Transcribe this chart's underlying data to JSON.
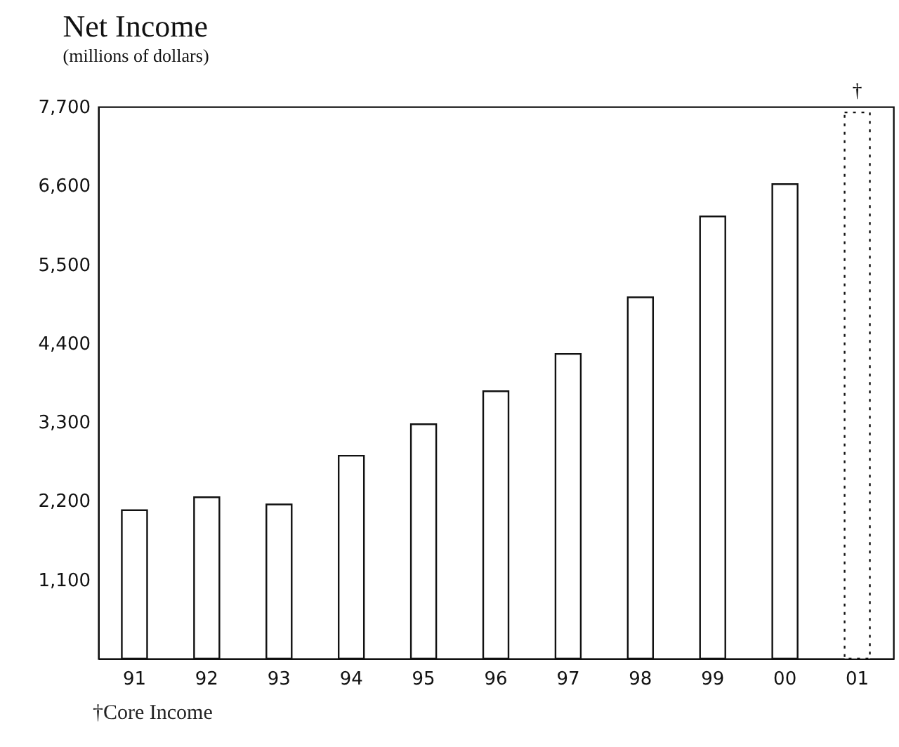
{
  "chart_data": {
    "type": "bar",
    "title": "Net Income",
    "subtitle": "(millions of dollars)",
    "categories": [
      "91",
      "92",
      "93",
      "94",
      "95",
      "96",
      "97",
      "98",
      "99",
      "00",
      "01"
    ],
    "series": [
      {
        "color": "#ffffff",
        "line_style": "solid",
        "values": [
          2070,
          2250,
          2150,
          2830,
          3270,
          3730,
          4250,
          5040,
          6170,
          6620,
          null
        ]
      },
      {
        "color": "#ffffff",
        "line_style": "dotted",
        "values": [
          null,
          null,
          null,
          null,
          null,
          null,
          null,
          null,
          null,
          null,
          7620
        ]
      }
    ],
    "ylim": [
      0,
      7700
    ],
    "yticks": [
      {
        "value": 1100,
        "label": "1,100"
      },
      {
        "value": 2200,
        "label": "2,200"
      },
      {
        "value": 3300,
        "label": "3,300"
      },
      {
        "value": 4400,
        "label": "4,400"
      },
      {
        "value": 5500,
        "label": "5,500"
      },
      {
        "value": 6600,
        "label": "6,600"
      },
      {
        "value": 7700,
        "label": "7,700"
      }
    ],
    "grid": false,
    "annotations": [
      {
        "text": "†",
        "x": "01",
        "y": 7620
      },
      "†Core Income"
    ]
  }
}
